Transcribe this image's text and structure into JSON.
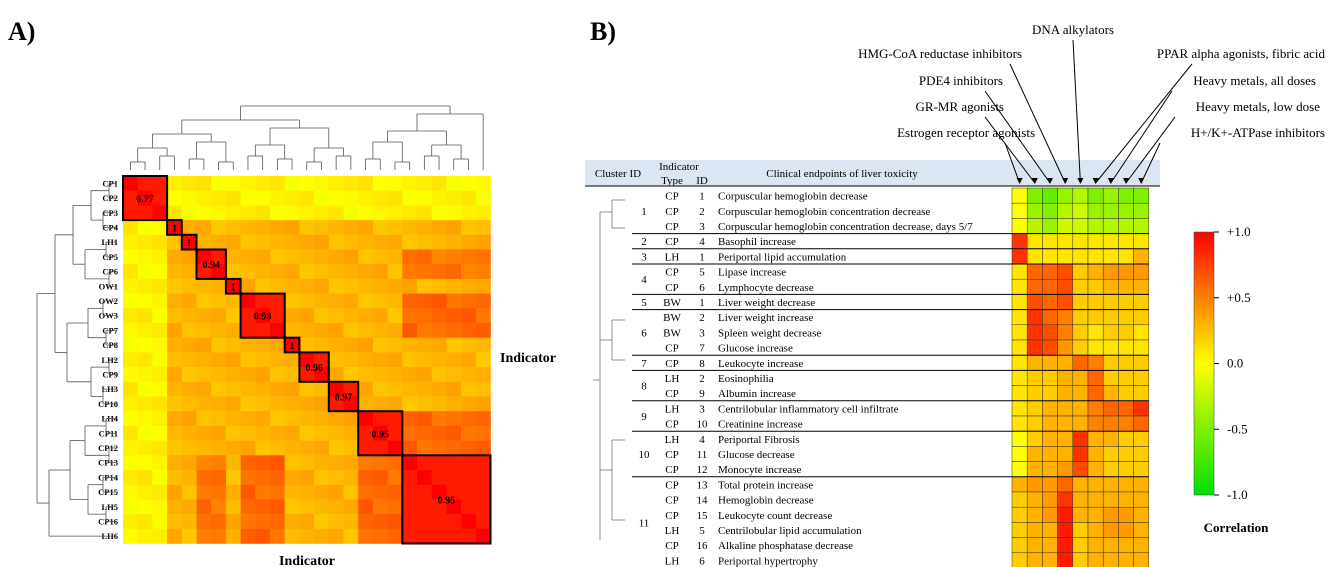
{
  "panel_a_label": "A)",
  "panel_b_label": "B)",
  "chart_data": [
    {
      "type": "heatmap",
      "panel": "A",
      "xlabel": "Indicator",
      "ylabel": "Indicator",
      "rows": [
        "CP1",
        "CP2",
        "CP3",
        "CP4",
        "LH1",
        "CP5",
        "CP6",
        "OW1",
        "OW2",
        "OW3",
        "CP7",
        "CP8",
        "LH2",
        "CP9",
        "LH3",
        "CP10",
        "LH4",
        "CP11",
        "CP12",
        "CP13",
        "CP14",
        "CP15",
        "LH5",
        "CP16",
        "LH6"
      ],
      "clusters": [
        {
          "start": 0,
          "end": 2,
          "label": "0.77"
        },
        {
          "start": 3,
          "end": 3,
          "label": "1"
        },
        {
          "start": 4,
          "end": 4,
          "label": "1"
        },
        {
          "start": 5,
          "end": 6,
          "label": "0.94"
        },
        {
          "start": 7,
          "end": 7,
          "label": "1"
        },
        {
          "start": 8,
          "end": 10,
          "label": "0.98"
        },
        {
          "start": 11,
          "end": 11,
          "label": "1"
        },
        {
          "start": 12,
          "end": 13,
          "label": "0.96"
        },
        {
          "start": 14,
          "end": 15,
          "label": "0.97"
        },
        {
          "start": 16,
          "end": 18,
          "label": "0.95"
        },
        {
          "start": 19,
          "end": 24,
          "label": "0.95"
        }
      ],
      "color_scale": {
        "min": -1.0,
        "max": 1.0
      }
    },
    {
      "type": "heatmap",
      "panel": "B",
      "header": {
        "cluster_id": "Cluster ID",
        "indicator_line1": "Indicator",
        "indicator_type": "Type",
        "indicator_id": "ID",
        "endpoints": "Clinical endpoints of liver toxicity"
      },
      "columns": [
        "Estrogen receptor agonists",
        "GR-MR agonists",
        "PDE4 inhibitors",
        "HMG-CoA reductase inhibitors",
        "DNA alkylators",
        "PPAR alpha agonists, fibric acid",
        "Heavy metals, all doses",
        "Heavy metals, low dose",
        "H+/K+-ATPase inhibitors"
      ],
      "rows": [
        {
          "cluster": "1",
          "type": "CP",
          "id": "1",
          "label": "Corpuscular hemoglobin decrease",
          "values": [
            0.0,
            -0.5,
            -0.6,
            -0.4,
            -0.3,
            -0.5,
            -0.4,
            -0.5,
            -0.5
          ]
        },
        {
          "cluster": "",
          "type": "CP",
          "id": "2",
          "label": "Corpuscular hemoglobin concentration decrease",
          "values": [
            0.0,
            -0.4,
            -0.5,
            -0.3,
            -0.2,
            -0.4,
            -0.4,
            -0.4,
            -0.4
          ]
        },
        {
          "cluster": "",
          "type": "CP",
          "id": "3",
          "label": "Corpuscular hemoglobin concentration decrease, days 5/7",
          "values": [
            0.0,
            -0.3,
            -0.4,
            -0.2,
            -0.2,
            -0.3,
            -0.3,
            -0.3,
            -0.3
          ]
        },
        {
          "cluster": "2",
          "type": "CP",
          "id": "4",
          "label": "Basophil increase",
          "values": [
            0.8,
            0.1,
            0.1,
            0.1,
            0.1,
            0.1,
            0.1,
            0.1,
            0.1
          ]
        },
        {
          "cluster": "3",
          "type": "LH",
          "id": "1",
          "label": "Periportal lipid accumulation",
          "values": [
            0.8,
            0.1,
            0.1,
            0.1,
            0.1,
            0.1,
            0.1,
            0.1,
            0.3
          ]
        },
        {
          "cluster": "4",
          "type": "CP",
          "id": "5",
          "label": "Lipase increase",
          "values": [
            0.1,
            0.6,
            0.6,
            0.7,
            0.2,
            0.3,
            0.4,
            0.4,
            0.4
          ]
        },
        {
          "cluster": "",
          "type": "CP",
          "id": "6",
          "label": "Lymphocyte decrease",
          "values": [
            0.1,
            0.6,
            0.6,
            0.7,
            0.2,
            0.2,
            0.3,
            0.3,
            0.3
          ]
        },
        {
          "cluster": "5",
          "type": "BW",
          "id": "1",
          "label": "Liver weight decrease",
          "values": [
            0.1,
            0.7,
            0.6,
            0.7,
            0.2,
            0.2,
            0.2,
            0.2,
            0.2
          ]
        },
        {
          "cluster": "6",
          "type": "BW",
          "id": "2",
          "label": "Liver weight increase",
          "values": [
            0.1,
            0.8,
            0.6,
            0.5,
            0.2,
            0.2,
            0.2,
            0.2,
            0.2
          ]
        },
        {
          "cluster": "",
          "type": "BW",
          "id": "3",
          "label": "Spleen weight decrease",
          "values": [
            0.1,
            0.8,
            0.7,
            0.5,
            0.2,
            0.1,
            0.2,
            0.2,
            0.1
          ]
        },
        {
          "cluster": "",
          "type": "CP",
          "id": "7",
          "label": "Glucose increase",
          "values": [
            0.1,
            0.8,
            0.7,
            0.4,
            0.2,
            0.1,
            0.1,
            0.1,
            0.1
          ]
        },
        {
          "cluster": "7",
          "type": "CP",
          "id": "8",
          "label": "Leukocyte increase",
          "values": [
            0.1,
            0.3,
            0.3,
            0.3,
            0.6,
            0.5,
            0.2,
            0.2,
            0.2
          ]
        },
        {
          "cluster": "8",
          "type": "LH",
          "id": "2",
          "label": "Eosinophilia",
          "values": [
            0.1,
            0.2,
            0.2,
            0.3,
            0.3,
            0.6,
            0.2,
            0.2,
            0.2
          ]
        },
        {
          "cluster": "",
          "type": "CP",
          "id": "9",
          "label": "Albumin increase",
          "values": [
            0.1,
            0.2,
            0.2,
            0.3,
            0.3,
            0.6,
            0.3,
            0.2,
            0.2
          ]
        },
        {
          "cluster": "9",
          "type": "LH",
          "id": "3",
          "label": "Centrilobular inflammatory cell infiltrate",
          "values": [
            0.1,
            0.2,
            0.3,
            0.3,
            0.3,
            0.5,
            0.6,
            0.6,
            0.8
          ]
        },
        {
          "cluster": "",
          "type": "CP",
          "id": "10",
          "label": "Creatinine increase",
          "values": [
            0.1,
            0.2,
            0.3,
            0.3,
            0.3,
            0.5,
            0.5,
            0.5,
            0.6
          ]
        },
        {
          "cluster": "10",
          "type": "LH",
          "id": "4",
          "label": "Periportal Fibrosis",
          "values": [
            0.0,
            0.2,
            0.3,
            0.3,
            0.8,
            0.3,
            0.3,
            0.2,
            0.2
          ]
        },
        {
          "cluster": "",
          "type": "CP",
          "id": "11",
          "label": "Glucose decrease",
          "values": [
            0.0,
            0.3,
            0.3,
            0.3,
            0.8,
            0.3,
            0.2,
            0.2,
            0.2
          ]
        },
        {
          "cluster": "",
          "type": "CP",
          "id": "12",
          "label": "Monocyte increase",
          "values": [
            0.0,
            0.3,
            0.3,
            0.4,
            0.7,
            0.3,
            0.2,
            0.2,
            0.2
          ]
        },
        {
          "cluster": "11",
          "type": "CP",
          "id": "13",
          "label": "Total protein increase",
          "values": [
            0.3,
            0.4,
            0.4,
            0.6,
            0.3,
            0.3,
            0.3,
            0.3,
            0.3
          ]
        },
        {
          "cluster": "",
          "type": "CP",
          "id": "14",
          "label": "Hemoglobin decrease",
          "values": [
            0.2,
            0.3,
            0.4,
            0.8,
            0.3,
            0.3,
            0.3,
            0.3,
            0.3
          ]
        },
        {
          "cluster": "",
          "type": "CP",
          "id": "15",
          "label": "Leukocyte count decrease",
          "values": [
            0.2,
            0.3,
            0.4,
            0.9,
            0.3,
            0.3,
            0.4,
            0.4,
            0.3
          ]
        },
        {
          "cluster": "",
          "type": "LH",
          "id": "5",
          "label": "Centrilobular lipid accumulation",
          "values": [
            0.2,
            0.3,
            0.3,
            0.9,
            0.2,
            0.3,
            0.4,
            0.4,
            0.3
          ]
        },
        {
          "cluster": "",
          "type": "CP",
          "id": "16",
          "label": "Alkaline phosphatase decrease",
          "values": [
            0.2,
            0.3,
            0.3,
            0.9,
            0.2,
            0.3,
            0.3,
            0.3,
            0.3
          ]
        },
        {
          "cluster": "",
          "type": "LH",
          "id": "6",
          "label": "Periportal hypertrophy",
          "values": [
            0.2,
            0.3,
            0.3,
            0.9,
            0.2,
            0.3,
            0.3,
            0.3,
            0.3
          ]
        }
      ],
      "colorbar": {
        "title": "Correlation",
        "ticks": [
          "+1.0",
          "+0.5",
          "0.0",
          "-0.5",
          "-1.0"
        ],
        "min": -1.0,
        "max": 1.0,
        "colors": [
          "#00e000",
          "#ffff00",
          "#ff0000"
        ]
      }
    }
  ]
}
